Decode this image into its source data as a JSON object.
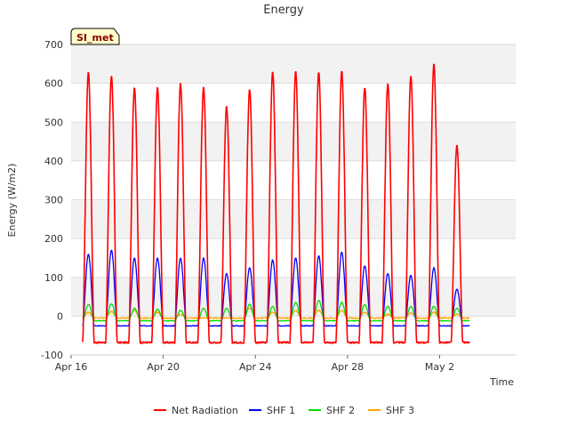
{
  "chart_data": {
    "type": "line",
    "title": "Energy",
    "site_label": "SI_met",
    "xlabel": "Time",
    "ylabel": "Energy (W/m2)",
    "ylim": [
      -100,
      700
    ],
    "yticks": [
      -100,
      0,
      100,
      200,
      300,
      400,
      500,
      600,
      700
    ],
    "xlim": [
      16.0,
      35.3
    ],
    "xticks": [
      {
        "value": 16,
        "label": "Apr 16"
      },
      {
        "value": 20,
        "label": "Apr 20"
      },
      {
        "value": 24,
        "label": "Apr 24"
      },
      {
        "value": 28,
        "label": "Apr 28"
      },
      {
        "value": 32,
        "label": "May 2"
      }
    ],
    "banded_background": true,
    "legend_position": "bottom",
    "days": [
      16.5,
      17.5,
      18.5,
      19.5,
      20.5,
      21.5,
      22.5,
      23.5,
      24.5,
      25.5,
      26.5,
      27.5,
      28.5,
      29.5,
      30.5,
      31.5,
      32.5,
      33.5
    ],
    "series": [
      {
        "name": "Net Radiation",
        "color": "#ff0000",
        "night": -68,
        "peaks": [
          630,
          620,
          590,
          590,
          600,
          590,
          540,
          585,
          630,
          630,
          630,
          630,
          590,
          600,
          620,
          650,
          440
        ],
        "start_day": 16.5
      },
      {
        "name": "SHF 1",
        "color": "#0000ff",
        "night": -25,
        "peaks": [
          160,
          170,
          150,
          150,
          150,
          150,
          110,
          125,
          145,
          150,
          155,
          165,
          130,
          110,
          105,
          125,
          70
        ],
        "start_day": 16.5
      },
      {
        "name": "SHF 2",
        "color": "#00dd00",
        "night": -12,
        "peaks": [
          30,
          32,
          20,
          18,
          15,
          20,
          20,
          30,
          25,
          35,
          40,
          35,
          30,
          25,
          25,
          25,
          20
        ],
        "start_day": 16.5
      },
      {
        "name": "SHF 3",
        "color": "#ffa500",
        "night": -5,
        "peaks": [
          10,
          12,
          15,
          10,
          5,
          -5,
          -5,
          20,
          10,
          15,
          15,
          15,
          10,
          5,
          8,
          10,
          5
        ],
        "start_day": 16.5
      }
    ]
  }
}
